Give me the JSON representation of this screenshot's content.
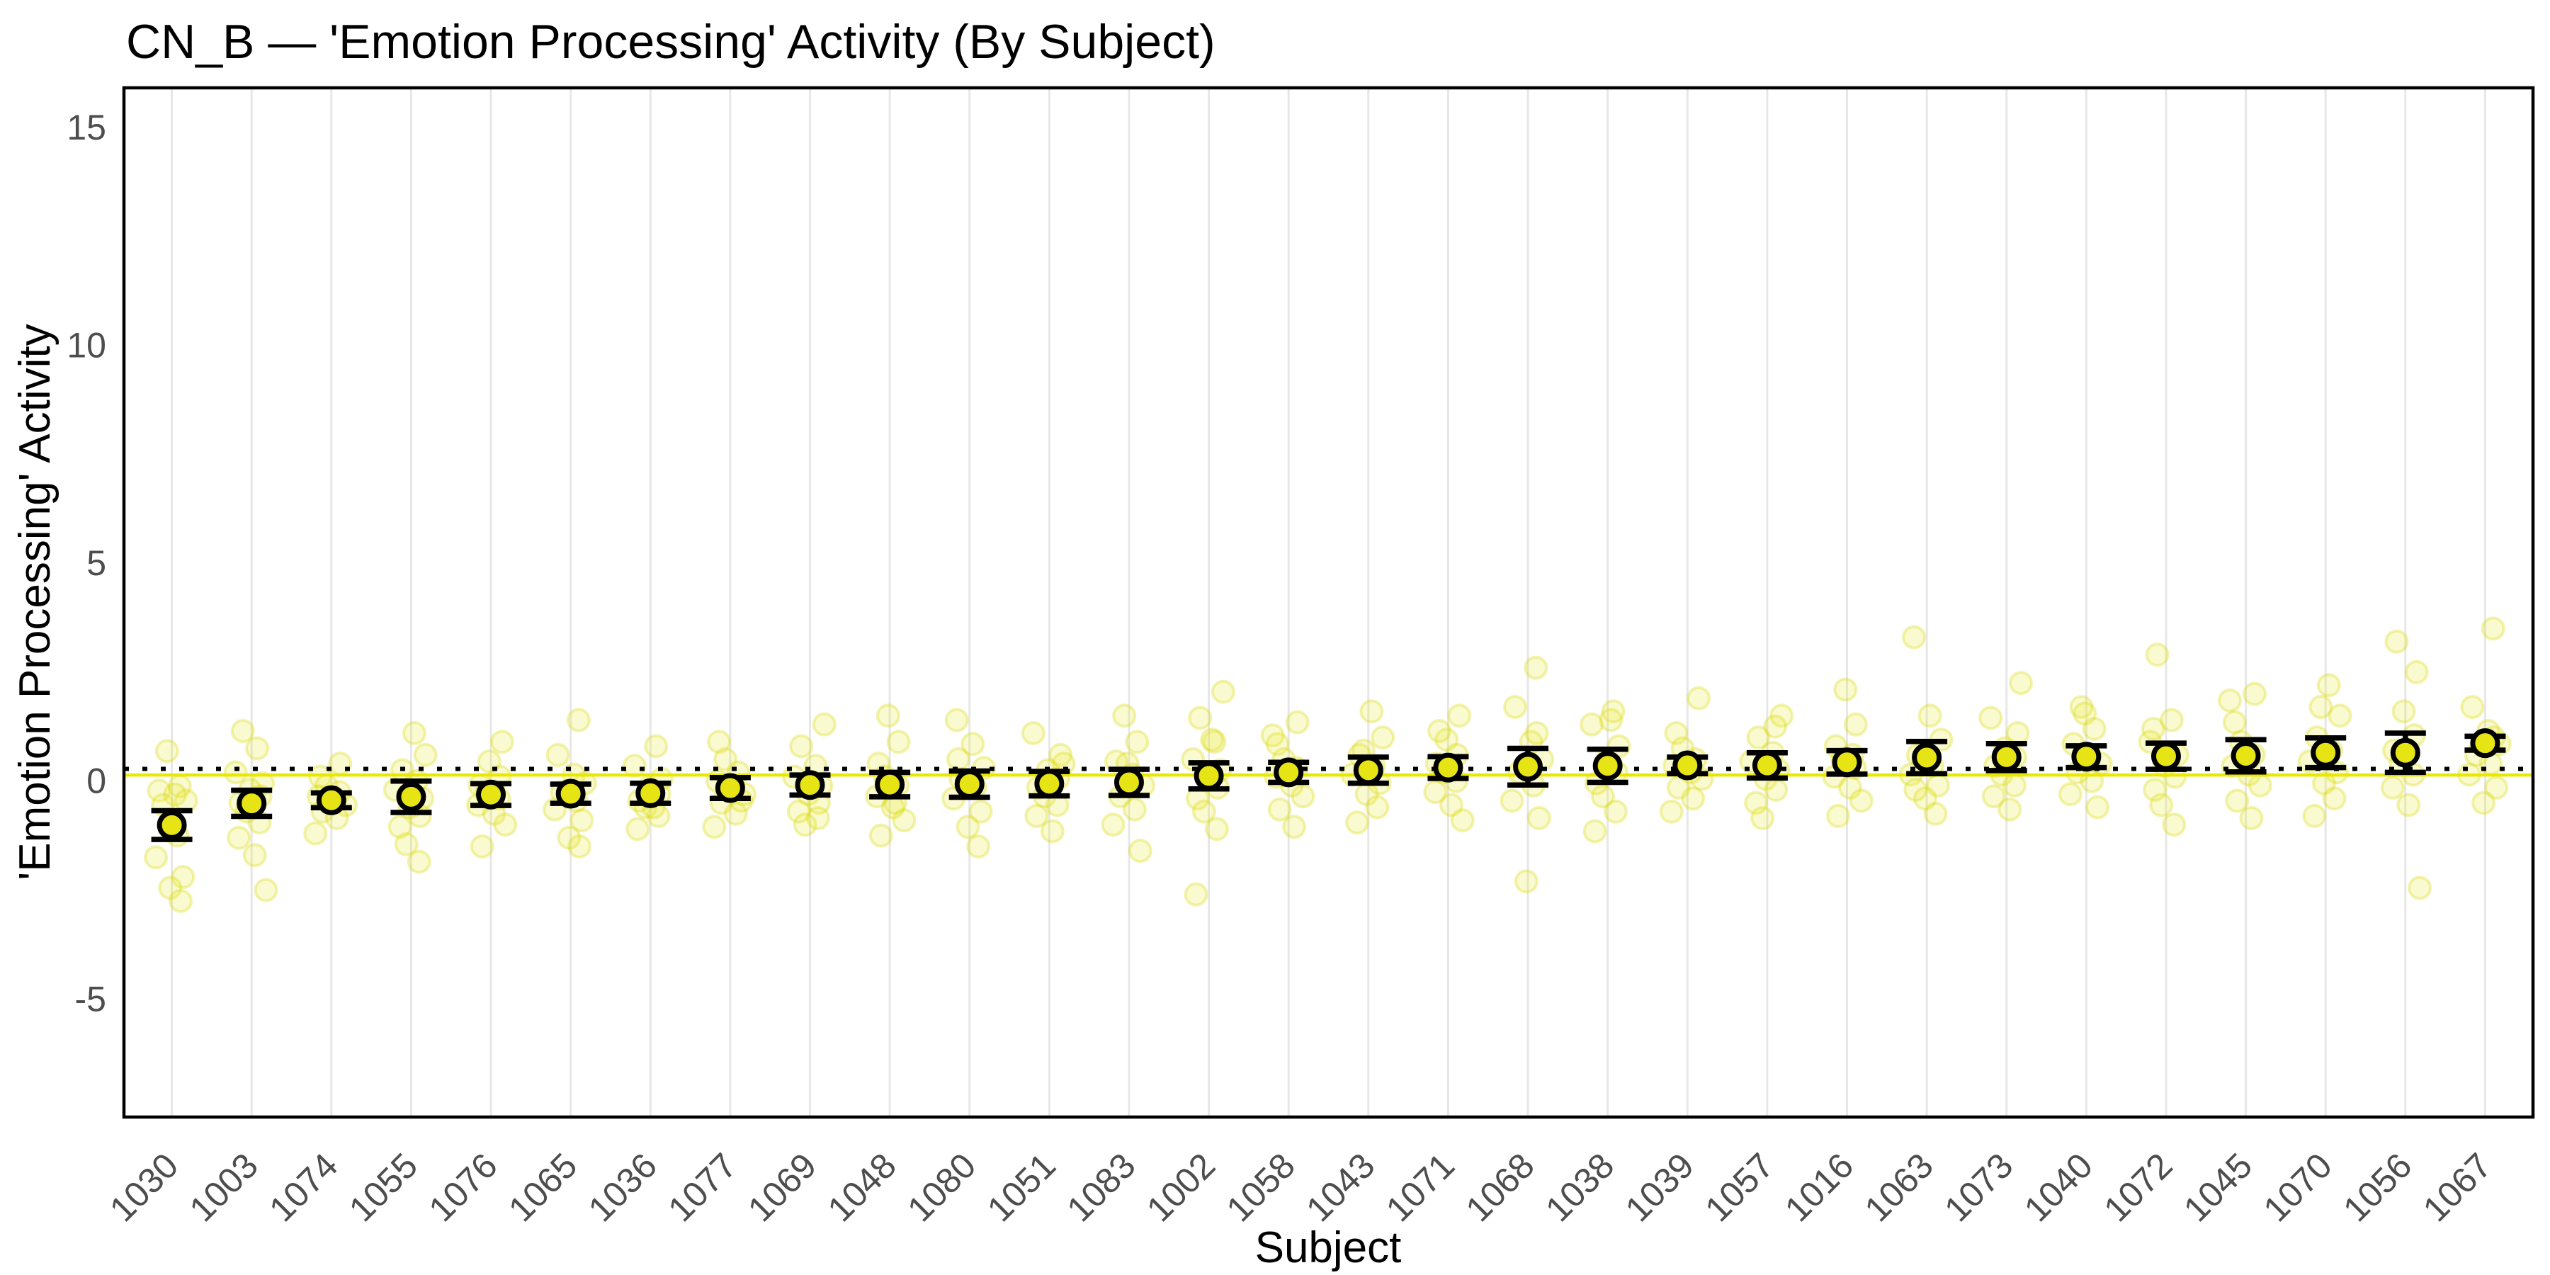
{
  "title": "CN_B — 'Emotion Processing' Activity (By Subject)",
  "axes": {
    "x_title": "Subject",
    "y_title": "'Emotion Processing' Activity"
  },
  "colors": {
    "accent_yellow": "#e6e414",
    "mean_line_yellow": "#e8e800",
    "reference_black": "#000000",
    "jitter_fill": "rgba(232,232,40,0.22)",
    "jitter_stroke": "rgba(214,214,0,0.30)",
    "gridline": "#e7e7e7",
    "panel_border": "#000000",
    "tick_text": "#4d4d4d",
    "title_text": "#000000"
  },
  "chart_data": {
    "type": "scatter",
    "title": "CN_B — 'Emotion Processing' Activity (By Subject)",
    "xlabel": "Subject",
    "ylabel": "'Emotion Processing' Activity",
    "categories": [
      "1030",
      "1003",
      "1074",
      "1055",
      "1076",
      "1065",
      "1036",
      "1077",
      "1069",
      "1048",
      "1080",
      "1051",
      "1083",
      "1002",
      "1058",
      "1043",
      "1071",
      "1068",
      "1038",
      "1039",
      "1057",
      "1016",
      "1063",
      "1073",
      "1040",
      "1072",
      "1045",
      "1070",
      "1056",
      "1067"
    ],
    "yticks": [
      15,
      10,
      5,
      0,
      -5
    ],
    "ylim": [
      -7.7,
      15.9
    ],
    "grid": "vertical-major-only",
    "legend": "none",
    "reference_lines": [
      {
        "name": "dotted-reference-line",
        "style": "dotted",
        "color": "#000000",
        "value": 0.28
      },
      {
        "name": "group-mean-line",
        "style": "solid",
        "color": "#e8e800",
        "value": 0.14
      }
    ],
    "series": [
      {
        "name": "subject-mean",
        "values": [
          -1.01,
          -0.51,
          -0.44,
          -0.36,
          -0.31,
          -0.29,
          -0.28,
          -0.16,
          -0.09,
          -0.08,
          -0.07,
          -0.06,
          -0.03,
          0.12,
          0.2,
          0.25,
          0.31,
          0.33,
          0.35,
          0.36,
          0.36,
          0.43,
          0.54,
          0.55,
          0.56,
          0.57,
          0.58,
          0.65,
          0.65,
          0.87
        ]
      },
      {
        "name": "ci-halfwidth",
        "values": [
          0.33,
          0.3,
          0.17,
          0.36,
          0.25,
          0.22,
          0.23,
          0.24,
          0.23,
          0.28,
          0.3,
          0.28,
          0.3,
          0.3,
          0.23,
          0.3,
          0.25,
          0.42,
          0.38,
          0.19,
          0.29,
          0.27,
          0.37,
          0.31,
          0.25,
          0.3,
          0.37,
          0.34,
          0.45,
          0.16
        ]
      }
    ],
    "jitter_points": [
      [
        0.69,
        -0.12,
        -0.22,
        -0.31,
        -0.45,
        -0.55,
        -1.25,
        -1.75,
        -2.2,
        -2.45,
        -2.75
      ],
      [
        1.15,
        0.75,
        0.2,
        -0.05,
        -0.2,
        -0.35,
        -0.5,
        -0.7,
        -0.95,
        -1.3,
        -1.7,
        -2.5
      ],
      [
        0.4,
        0.1,
        -0.1,
        -0.25,
        -0.35,
        -0.45,
        -0.55,
        -0.7,
        -0.85,
        -1.2
      ],
      [
        1.1,
        0.6,
        0.25,
        0.0,
        -0.2,
        -0.4,
        -0.6,
        -0.8,
        -1.05,
        -1.45,
        -1.85
      ],
      [
        0.9,
        0.45,
        0.1,
        -0.1,
        -0.25,
        -0.4,
        -0.55,
        -0.75,
        -1.0,
        -1.5
      ],
      [
        1.4,
        0.6,
        0.15,
        -0.05,
        -0.25,
        -0.45,
        -0.65,
        -0.9,
        -1.3,
        -1.5
      ],
      [
        0.8,
        0.35,
        0.05,
        -0.15,
        -0.3,
        -0.45,
        -0.6,
        -0.8,
        -1.1,
        -0.6
      ],
      [
        0.9,
        0.5,
        0.2,
        0.0,
        -0.15,
        -0.3,
        -0.5,
        -0.75,
        -1.05,
        -0.45
      ],
      [
        1.3,
        0.8,
        0.35,
        0.1,
        -0.1,
        -0.3,
        -0.5,
        -0.7,
        -1.0,
        -0.85
      ],
      [
        1.5,
        0.9,
        0.4,
        0.1,
        -0.1,
        -0.35,
        -0.6,
        -0.9,
        -1.25,
        -0.5
      ],
      [
        1.4,
        0.85,
        0.3,
        0.05,
        -0.15,
        -0.4,
        -0.7,
        -1.05,
        -1.5,
        0.5
      ],
      [
        1.1,
        0.6,
        0.25,
        0.05,
        -0.15,
        -0.35,
        -0.55,
        -0.8,
        -1.15,
        0.4
      ],
      [
        1.5,
        0.9,
        0.45,
        0.15,
        -0.1,
        -0.35,
        -0.65,
        -1.0,
        -1.6,
        0.4
      ],
      [
        1.45,
        0.9,
        0.5,
        0.25,
        0.05,
        -0.15,
        -0.4,
        -0.7,
        -1.1,
        -2.6,
        0.95,
        2.05
      ],
      [
        1.35,
        0.85,
        0.5,
        0.3,
        0.1,
        -0.1,
        -0.35,
        -0.65,
        -1.05,
        1.05
      ],
      [
        1.6,
        1.0,
        0.6,
        0.35,
        0.15,
        -0.05,
        -0.3,
        -0.6,
        -0.95,
        0.7
      ],
      [
        1.5,
        0.95,
        0.6,
        0.4,
        0.2,
        0.0,
        -0.25,
        -0.55,
        -0.9,
        1.15
      ],
      [
        2.6,
        1.7,
        0.9,
        0.5,
        0.2,
        -0.1,
        -0.45,
        -0.85,
        -2.3,
        1.1
      ],
      [
        1.6,
        1.3,
        0.8,
        0.45,
        0.2,
        -0.05,
        -0.35,
        -0.7,
        -1.15,
        1.4
      ],
      [
        1.1,
        0.75,
        0.5,
        0.35,
        0.2,
        0.05,
        -0.15,
        -0.4,
        -0.7,
        1.9
      ],
      [
        1.5,
        1.0,
        0.65,
        0.45,
        0.25,
        0.05,
        -0.2,
        -0.5,
        -0.85,
        1.25
      ],
      [
        2.1,
        1.3,
        0.8,
        0.5,
        0.3,
        0.1,
        -0.15,
        -0.45,
        -0.8,
        0.6
      ],
      [
        3.3,
        1.5,
        0.95,
        0.6,
        0.35,
        0.15,
        -0.1,
        -0.4,
        -0.75,
        -0.2
      ],
      [
        1.45,
        1.1,
        0.75,
        0.55,
        0.35,
        0.15,
        -0.1,
        -0.35,
        -0.65,
        2.25
      ],
      [
        1.7,
        1.2,
        0.85,
        0.6,
        0.4,
        0.2,
        0.0,
        -0.3,
        -0.6,
        1.55
      ],
      [
        2.9,
        1.4,
        0.9,
        0.6,
        0.35,
        0.1,
        -0.2,
        -0.55,
        -1.0,
        1.2
      ],
      [
        2.0,
        1.35,
        0.9,
        0.6,
        0.35,
        0.15,
        -0.1,
        -0.45,
        -0.85,
        1.85
      ],
      [
        2.2,
        1.5,
        1.0,
        0.7,
        0.45,
        0.2,
        -0.05,
        -0.4,
        -0.8,
        1.7
      ],
      [
        2.5,
        1.6,
        1.05,
        0.7,
        0.4,
        0.15,
        -0.15,
        -0.55,
        -2.45,
        3.2
      ],
      [
        3.5,
        1.7,
        1.15,
        0.85,
        0.6,
        0.4,
        0.15,
        -0.15,
        -0.5,
        1.0
      ]
    ],
    "jitter_x_offsets": [
      -0.06,
      0.1,
      -0.16,
      0.04,
      0.18,
      -0.11,
      0.07,
      -0.2,
      0.14,
      -0.02,
      0.11,
      -0.14
    ]
  }
}
